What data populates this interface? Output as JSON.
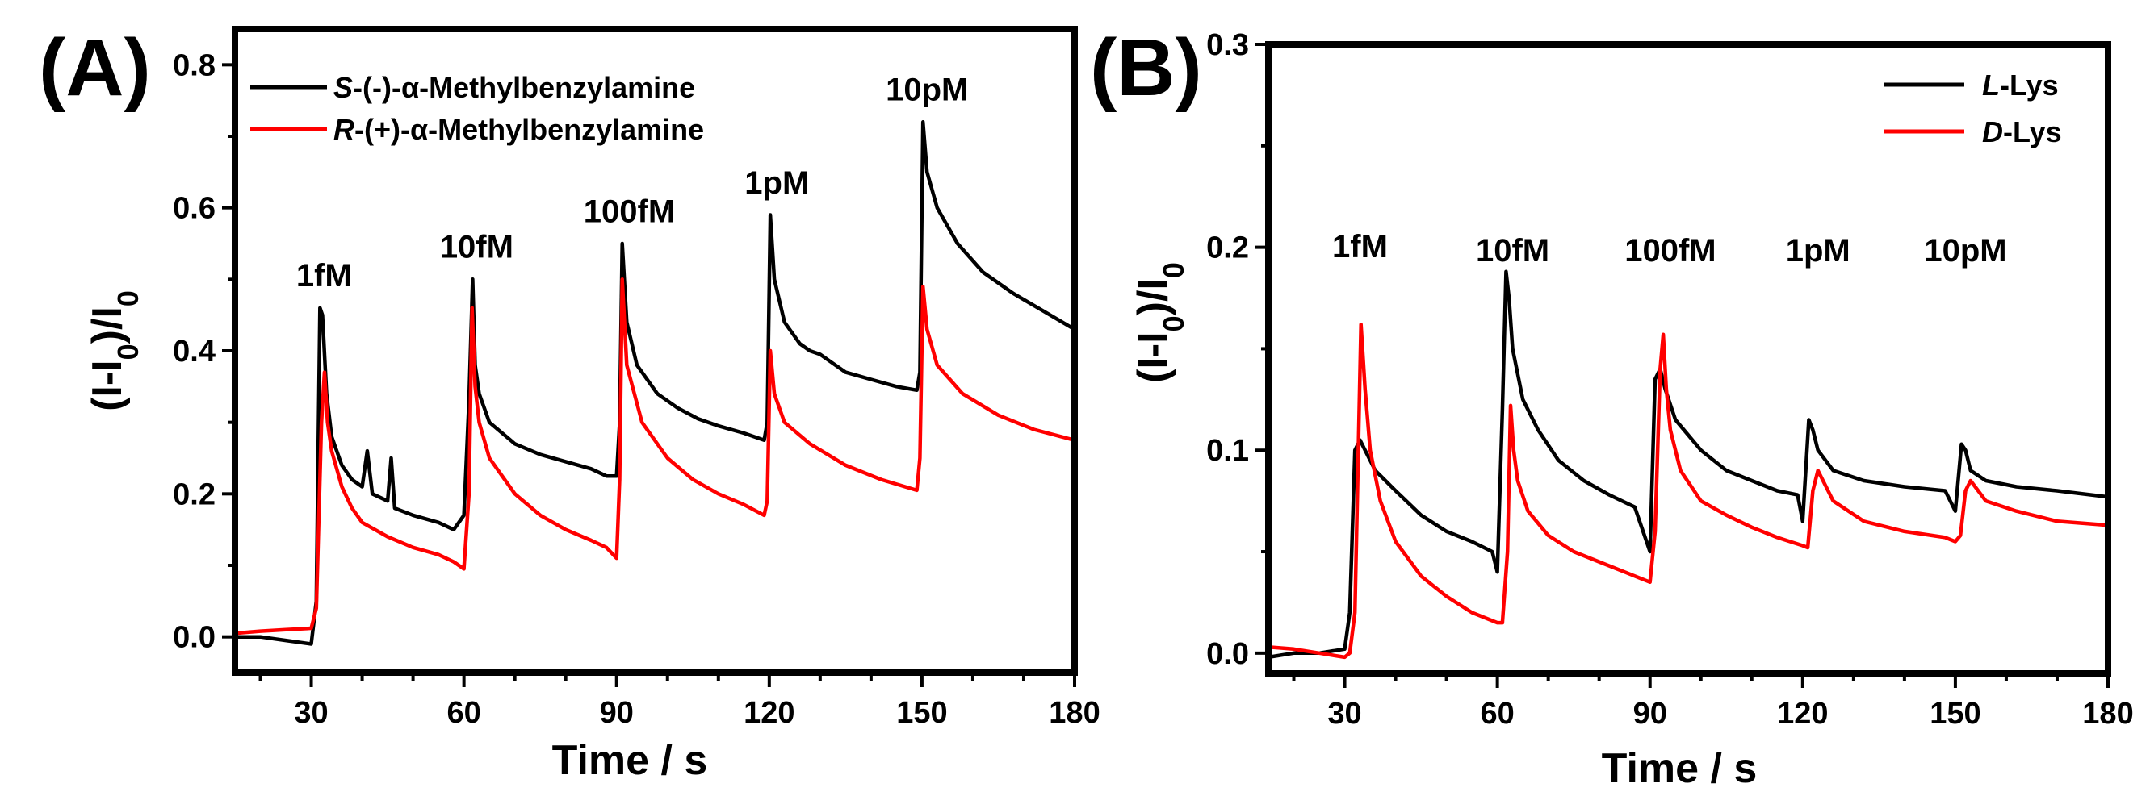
{
  "chart_data": [
    {
      "type": "line",
      "panel_label": "(A)",
      "xlabel": "Time / s",
      "ylabel": "(I-I0)/I0",
      "xlim": [
        15,
        180
      ],
      "ylim": [
        -0.05,
        0.85
      ],
      "xticks": [
        30,
        60,
        90,
        120,
        150,
        180
      ],
      "yticks": [
        0.0,
        0.2,
        0.4,
        0.6,
        0.8
      ],
      "ytick_labels": [
        "0.0",
        "0.2",
        "0.4",
        "0.6",
        "0.8"
      ],
      "legend": {
        "position": "top-left"
      },
      "annotations": [
        {
          "text": "1fM",
          "x": 32.5,
          "y": 0.49
        },
        {
          "text": "10fM",
          "x": 62.5,
          "y": 0.53
        },
        {
          "text": "100fM",
          "x": 92.5,
          "y": 0.58
        },
        {
          "text": "1pM",
          "x": 121.5,
          "y": 0.62
        },
        {
          "text": "10pM",
          "x": 151,
          "y": 0.75
        }
      ],
      "series": [
        {
          "name": "S-(-)-α-Methylbenzylamine",
          "name_italic": "S",
          "name_rest": "-(-)-α-Methylbenzylamine",
          "color": "#000000",
          "x": [
            15,
            20,
            25,
            30,
            31,
            31.7,
            32.2,
            33,
            34,
            36,
            38,
            40,
            41,
            42,
            45,
            45.7,
            46.4,
            50,
            55,
            58,
            60,
            61,
            61.7,
            62.2,
            63,
            65,
            70,
            75,
            80,
            85,
            88,
            90,
            90.6,
            91.1,
            92,
            94,
            98,
            102,
            106,
            110,
            115,
            119,
            119.6,
            120.2,
            121,
            123,
            126,
            128,
            130,
            132,
            135,
            140,
            145,
            149,
            149.6,
            150.2,
            151,
            153,
            157,
            162,
            168,
            174,
            180
          ],
          "y": [
            0.0,
            0.0,
            -0.005,
            -0.01,
            0.05,
            0.46,
            0.45,
            0.34,
            0.28,
            0.24,
            0.22,
            0.21,
            0.26,
            0.2,
            0.19,
            0.25,
            0.18,
            0.17,
            0.16,
            0.15,
            0.17,
            0.33,
            0.5,
            0.38,
            0.34,
            0.3,
            0.27,
            0.255,
            0.245,
            0.235,
            0.225,
            0.225,
            0.3,
            0.55,
            0.44,
            0.38,
            0.34,
            0.32,
            0.305,
            0.295,
            0.285,
            0.275,
            0.3,
            0.59,
            0.5,
            0.44,
            0.41,
            0.4,
            0.395,
            0.385,
            0.37,
            0.36,
            0.35,
            0.345,
            0.37,
            0.72,
            0.65,
            0.6,
            0.55,
            0.51,
            0.48,
            0.455,
            0.43
          ]
        },
        {
          "name": "R-(+)-α-Methylbenzylamine",
          "name_italic": "R",
          "name_rest": "-(+)-α-Methylbenzylamine",
          "color": "#ff0000",
          "x": [
            15,
            20,
            25,
            30,
            31,
            32,
            32.6,
            33.2,
            34,
            36,
            38,
            40,
            45,
            50,
            55,
            58,
            60,
            61,
            61.6,
            62.2,
            63,
            65,
            70,
            75,
            80,
            85,
            88,
            90,
            90.6,
            91.1,
            92,
            95,
            100,
            105,
            110,
            115,
            119,
            119.6,
            120.2,
            121,
            123,
            128,
            135,
            142,
            149,
            149.6,
            150.2,
            151,
            153,
            158,
            165,
            172,
            180
          ],
          "y": [
            0.005,
            0.008,
            0.01,
            0.012,
            0.04,
            0.3,
            0.37,
            0.3,
            0.26,
            0.21,
            0.18,
            0.16,
            0.14,
            0.125,
            0.115,
            0.105,
            0.095,
            0.2,
            0.46,
            0.35,
            0.3,
            0.25,
            0.2,
            0.17,
            0.15,
            0.135,
            0.125,
            0.11,
            0.22,
            0.5,
            0.38,
            0.3,
            0.25,
            0.22,
            0.2,
            0.185,
            0.17,
            0.19,
            0.4,
            0.34,
            0.3,
            0.27,
            0.24,
            0.22,
            0.205,
            0.25,
            0.49,
            0.43,
            0.38,
            0.34,
            0.31,
            0.29,
            0.275
          ]
        }
      ]
    },
    {
      "type": "line",
      "panel_label": "(B)",
      "xlabel": "Time / s",
      "ylabel": "(I-I0)/I0",
      "xlim": [
        15,
        180
      ],
      "ylim": [
        -0.01,
        0.3
      ],
      "xticks": [
        30,
        60,
        90,
        120,
        150,
        180
      ],
      "yticks": [
        0.0,
        0.1,
        0.2,
        0.3
      ],
      "ytick_labels": [
        "0.0",
        "0.1",
        "0.2",
        "0.3"
      ],
      "legend": {
        "position": "top-right"
      },
      "annotations": [
        {
          "text": "1fM",
          "x": 33,
          "y": 0.195
        },
        {
          "text": "10fM",
          "x": 63,
          "y": 0.193
        },
        {
          "text": "100fM",
          "x": 94,
          "y": 0.193
        },
        {
          "text": "1pM",
          "x": 123,
          "y": 0.193
        },
        {
          "text": "10pM",
          "x": 152,
          "y": 0.193
        }
      ],
      "series": [
        {
          "name": "L-Lys",
          "name_italic": "L",
          "name_rest": "-Lys",
          "color": "#000000",
          "x": [
            15,
            20,
            25,
            30,
            31,
            32,
            33,
            34,
            36,
            40,
            45,
            50,
            55,
            59,
            60,
            61,
            61.7,
            62.3,
            63,
            65,
            68,
            72,
            77,
            82,
            87,
            90,
            91,
            92,
            93,
            95,
            100,
            105,
            110,
            115,
            119,
            120,
            121.2,
            122,
            123,
            126,
            132,
            140,
            148,
            150,
            151.2,
            152,
            153,
            156,
            162,
            170,
            180
          ],
          "y": [
            -0.002,
            0.0,
            0.0,
            0.002,
            0.02,
            0.1,
            0.105,
            0.1,
            0.09,
            0.08,
            0.068,
            0.06,
            0.055,
            0.05,
            0.04,
            0.12,
            0.188,
            0.175,
            0.15,
            0.125,
            0.11,
            0.095,
            0.085,
            0.078,
            0.072,
            0.05,
            0.135,
            0.14,
            0.13,
            0.115,
            0.1,
            0.09,
            0.085,
            0.08,
            0.078,
            0.065,
            0.115,
            0.11,
            0.1,
            0.09,
            0.085,
            0.082,
            0.08,
            0.07,
            0.103,
            0.1,
            0.09,
            0.085,
            0.082,
            0.08,
            0.077
          ]
        },
        {
          "name": "D-Lys",
          "name_italic": "D",
          "name_rest": "-Lys",
          "color": "#ff0000",
          "x": [
            15,
            20,
            25,
            30,
            31,
            32,
            33.2,
            34,
            35,
            37,
            40,
            45,
            50,
            55,
            60,
            61,
            62,
            62.6,
            63.2,
            64,
            66,
            70,
            75,
            80,
            85,
            90,
            91,
            92,
            92.6,
            93.2,
            94,
            96,
            100,
            105,
            110,
            115,
            120,
            121,
            122,
            123,
            126,
            132,
            140,
            148,
            150,
            151,
            152,
            153,
            156,
            162,
            170,
            180
          ],
          "y": [
            0.003,
            0.002,
            0.0,
            -0.002,
            0.0,
            0.02,
            0.162,
            0.13,
            0.1,
            0.075,
            0.055,
            0.038,
            0.028,
            0.02,
            0.015,
            0.015,
            0.05,
            0.122,
            0.1,
            0.085,
            0.07,
            0.058,
            0.05,
            0.045,
            0.04,
            0.035,
            0.06,
            0.14,
            0.157,
            0.13,
            0.11,
            0.09,
            0.075,
            0.068,
            0.062,
            0.057,
            0.053,
            0.052,
            0.08,
            0.09,
            0.075,
            0.065,
            0.06,
            0.057,
            0.055,
            0.058,
            0.08,
            0.085,
            0.075,
            0.07,
            0.065,
            0.063
          ]
        }
      ]
    }
  ]
}
